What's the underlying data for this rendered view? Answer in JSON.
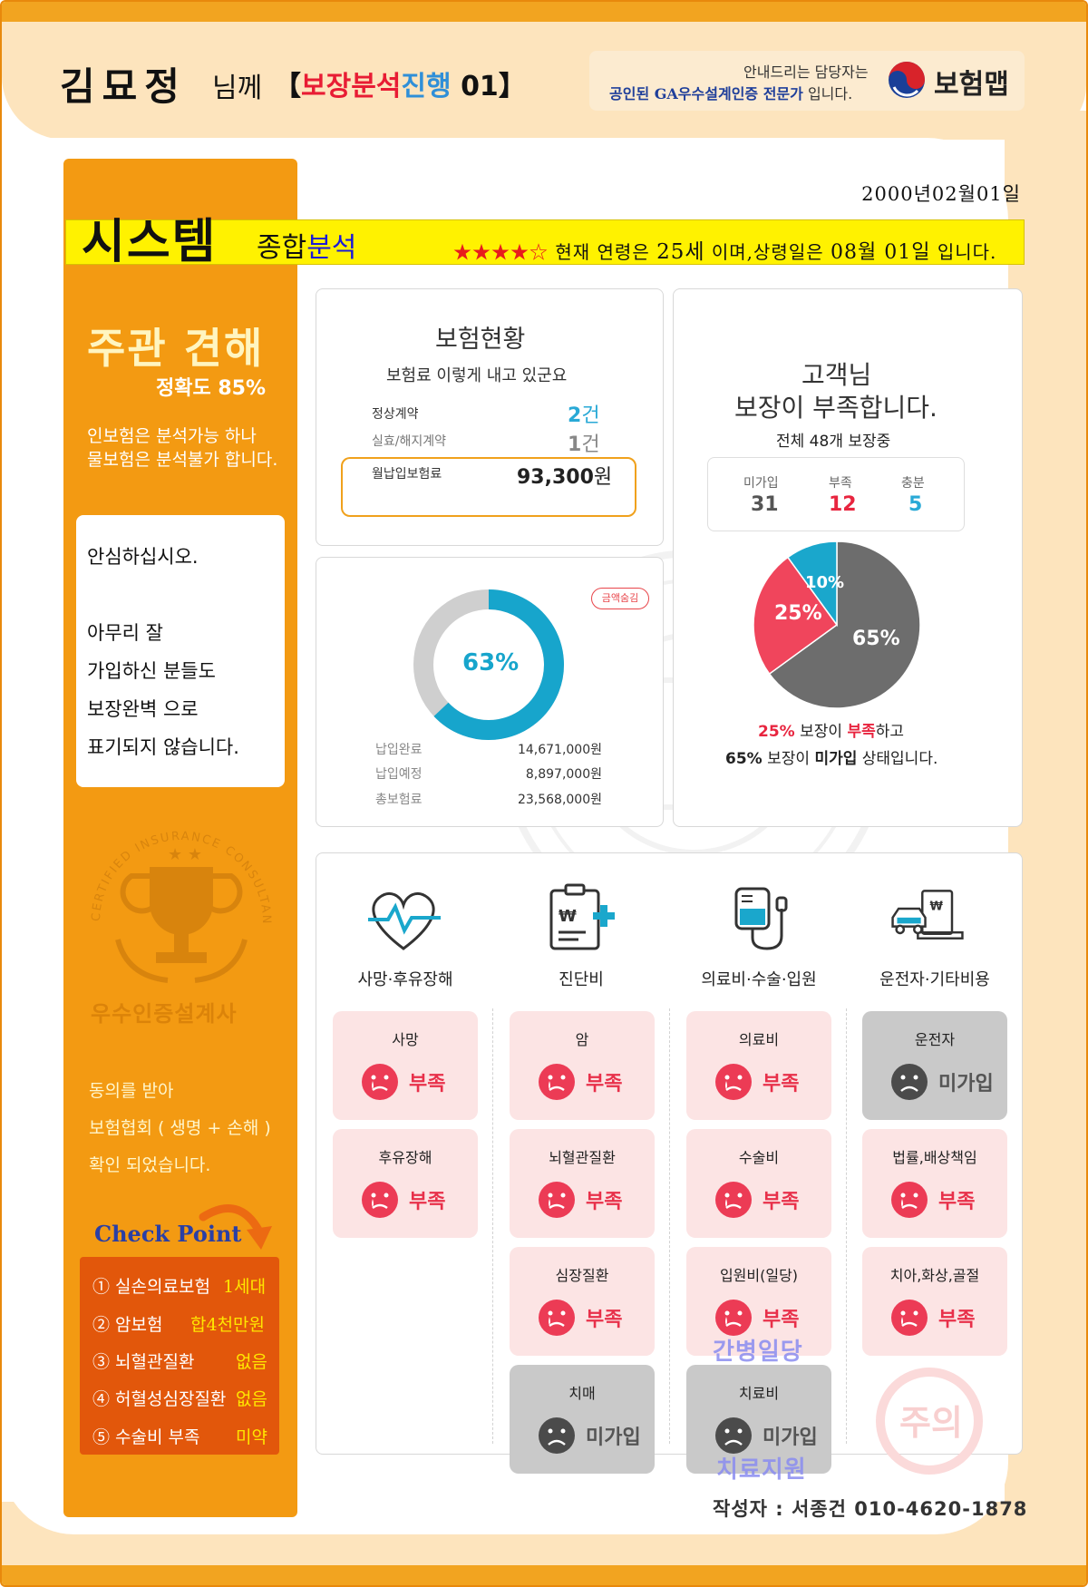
{
  "header": {
    "name": "김묘정",
    "suffix": "님께",
    "title_bracket_open": "【",
    "title_red": "보장분석",
    "title_blue": "진행",
    "title_num": "01",
    "title_bracket_close": "】"
  },
  "agent": {
    "line1": "안내드리는 담당자는",
    "line2_hl": "공인된 GA우수설계인증 전문가",
    "line2_rest": " 입니다.",
    "brand": "보험맵"
  },
  "date": "2000년02월01일",
  "system_bar": {
    "big": "시스템",
    "small_a": "종합",
    "small_b": "분석",
    "stars": "★★★★☆",
    "note_a": " 현재 연령은 ",
    "age": "25세",
    "note_b": " 이며,상령일은 ",
    "birthday": "08월 01일",
    "note_c": " 입니다."
  },
  "opinion": {
    "title": "주관 견해",
    "accuracy": "정확도 85%",
    "line1": "인보험은 분석가능 하나",
    "line2": "물보험은 분석불가 합니다."
  },
  "reassure": {
    "lines": [
      "안심하십시오.",
      "아무리 잘",
      "가입하신 분들도",
      "보장완벽 으로",
      "표기되지 않습니다."
    ]
  },
  "trophy_text": "우수인증설계사",
  "trophy_ring": "CERTIFIED INSURANCE CONSULTANT",
  "agree": {
    "lines": [
      "동의를 받아",
      "보험협회 ( 생명 + 손해 )",
      "확인 되었습니다."
    ]
  },
  "checkpoint": {
    "title": "Check Point",
    "items": [
      {
        "label": "① 실손의료보험",
        "value": "1세대"
      },
      {
        "label": "② 암보험",
        "value": "합4천만원"
      },
      {
        "label": "③ 뇌혈관질환",
        "value": "없음"
      },
      {
        "label": "④ 허혈성심장질환",
        "value": "없음"
      },
      {
        "label": "⑤ 수술비 부족",
        "value": "미약"
      }
    ]
  },
  "insurance_status": {
    "title": "보험현황",
    "subtitle": "보험료 이렇게 내고 있군요",
    "normal_label": "정상계약",
    "normal_value": "2",
    "normal_unit": "건",
    "lapsed_label": "실효/해지계약",
    "lapsed_value": "1",
    "lapsed_unit": "건",
    "premium_label": "월납입보험료",
    "premium_value": "93,300",
    "premium_unit": "원"
  },
  "coverage_lack": {
    "line1": "고객님",
    "line2": "보장이 부족합니다.",
    "sub": "전체 48개 보장중",
    "not_joined_label": "미가입",
    "not_joined_value": "31",
    "lacking_label": "부족",
    "lacking_value": "12",
    "enough_label": "충분",
    "enough_value": "5"
  },
  "payment": {
    "percent_label": "63%",
    "badge": "금액숨김",
    "rows": [
      {
        "label": "납입완료",
        "value": "14,671,000원"
      },
      {
        "label": "납입예정",
        "value": "8,897,000원"
      },
      {
        "label": "총보험료",
        "value": "23,568,000원"
      }
    ]
  },
  "chart_data": {
    "type": "pie",
    "slices": [
      {
        "name": "미가입",
        "value": 65,
        "label": "65%",
        "color": "#6d6d6d"
      },
      {
        "name": "부족",
        "value": 25,
        "label": "25%",
        "color": "#f0455c"
      },
      {
        "name": "충분",
        "value": 10,
        "label": "10%",
        "color": "#1aa7cc"
      }
    ],
    "note1_pct": "25%",
    "note1_a": " 보장이 ",
    "note1_red": "부족",
    "note1_b": "하고",
    "note2_pct": "65%",
    "note2_a": " 보장이 ",
    "note2_b": "미가입",
    "note2_c": " 상태입니다."
  },
  "donut": {
    "paid_fraction": 0.63,
    "colors": {
      "paid": "#17a5cc",
      "rest": "#cfcfcf"
    }
  },
  "categories": [
    {
      "icon": "heartbeat-icon",
      "label": "사망·후유장해"
    },
    {
      "icon": "clipboard-icon",
      "label": "진단비"
    },
    {
      "icon": "iv-drip-icon",
      "label": "의료비·수술·입원"
    },
    {
      "icon": "car-icon",
      "label": "운전자·기타비용"
    }
  ],
  "tiles": [
    [
      {
        "name": "사망",
        "status": "부족"
      },
      {
        "name": "후유장해",
        "status": "부족"
      }
    ],
    [
      {
        "name": "암",
        "status": "부족"
      },
      {
        "name": "뇌혈관질환",
        "status": "부족"
      },
      {
        "name": "심장질환",
        "status": "부족"
      },
      {
        "name": "치매",
        "status": "미가입"
      }
    ],
    [
      {
        "name": "의료비",
        "status": "부족"
      },
      {
        "name": "수술비",
        "status": "부족"
      },
      {
        "name": "입원비(일당)",
        "status": "부족"
      },
      {
        "name": "치료비",
        "status": "미가입"
      }
    ],
    [
      {
        "name": "운전자",
        "status": "미가입"
      },
      {
        "name": "법률,배상책임",
        "status": "부족"
      },
      {
        "name": "치아,화상,골절",
        "status": "부족"
      }
    ]
  ],
  "overlays": {
    "nursing": "간병일당",
    "treatment_support": "치료지원"
  },
  "caution": "주의",
  "author": "작성자 : 서종건 010-4620-1878"
}
